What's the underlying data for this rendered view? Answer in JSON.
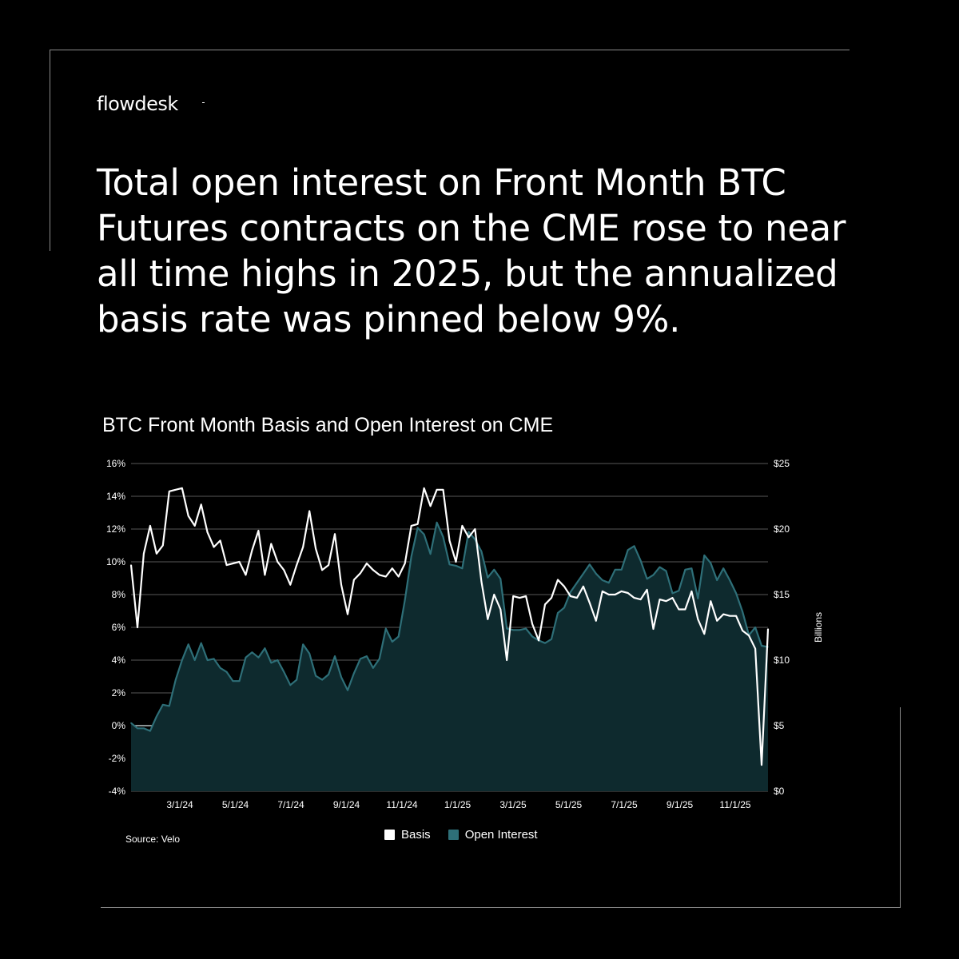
{
  "brand": {
    "logo_text": "flowdesk"
  },
  "headline": "Total open interest on Front Month BTC Futures contracts on the CME rose to near all time highs in 2025, but the annualized basis rate was pinned below 9%.",
  "chart_data": {
    "type": "line",
    "title": "BTC Front Month Basis and Open Interest on CME",
    "source": "Source: Velo",
    "x_tick_labels": [
      "3/1/24",
      "5/1/24",
      "7/1/24",
      "9/1/24",
      "11/1/24",
      "1/1/25",
      "3/1/25",
      "5/1/25",
      "7/1/25",
      "9/1/25",
      "11/1/25"
    ],
    "y_left": {
      "ticks": [
        "16%",
        "14%",
        "12%",
        "10%",
        "8%",
        "6%",
        "4%",
        "2%",
        "0%",
        "-2%",
        "-4%"
      ],
      "ylim": [
        -4,
        16
      ]
    },
    "y_right": {
      "ticks": [
        "$25",
        "$20",
        "$15",
        "$10",
        "$5",
        "$0"
      ],
      "ylim": [
        0,
        25
      ],
      "label": "Billions"
    },
    "legend_position": "bottom",
    "colors": {
      "basis": "#ffffff",
      "open_interest_line": "#2e6f78",
      "open_interest_fill": "#0e2a2e",
      "grid": "#777777",
      "zero_line": "#b8c4c6"
    },
    "series": [
      {
        "name": "Basis",
        "axis": "left",
        "values": [
          9.8,
          6.0,
          10.5,
          12.2,
          10.5,
          11.0,
          14.3,
          14.4,
          14.5,
          12.8,
          12.2,
          13.5,
          11.8,
          10.9,
          11.3,
          9.8,
          9.9,
          10.0,
          9.2,
          10.7,
          11.9,
          9.2,
          11.1,
          10.0,
          9.5,
          8.6,
          9.8,
          10.9,
          13.1,
          10.8,
          9.5,
          9.8,
          11.7,
          8.6,
          6.8,
          8.9,
          9.3,
          9.9,
          9.5,
          9.2,
          9.1,
          9.6,
          9.1,
          9.9,
          12.2,
          12.3,
          14.5,
          13.4,
          14.4,
          14.4,
          11.3,
          10.0,
          12.2,
          11.5,
          12.0,
          8.8,
          6.5,
          8.0,
          7.1,
          4.0,
          7.9,
          7.8,
          7.9,
          6.2,
          5.2,
          7.4,
          7.8,
          8.9,
          8.5,
          7.9,
          7.8,
          8.5,
          7.5,
          6.4,
          8.2,
          8.0,
          8.0,
          8.2,
          8.1,
          7.8,
          7.7,
          8.3,
          5.9,
          7.7,
          7.6,
          7.8,
          7.1,
          7.1,
          8.2,
          6.5,
          5.6,
          7.6,
          6.4,
          6.8,
          6.7,
          6.7,
          5.8,
          5.5,
          4.7,
          -2.4,
          5.9
        ]
      },
      {
        "name": "Open Interest",
        "axis": "right",
        "values": [
          5.2,
          4.8,
          4.8,
          4.6,
          5.7,
          6.6,
          6.5,
          8.5,
          10.0,
          11.2,
          10.0,
          11.3,
          10.0,
          10.1,
          9.4,
          9.1,
          8.4,
          8.4,
          10.2,
          10.6,
          10.2,
          10.9,
          9.8,
          10.0,
          9.1,
          8.1,
          8.5,
          11.2,
          10.5,
          8.8,
          8.5,
          8.9,
          10.3,
          8.7,
          7.7,
          9.0,
          10.1,
          10.3,
          9.4,
          10.1,
          12.4,
          11.4,
          11.8,
          14.6,
          17.9,
          20.1,
          19.6,
          18.1,
          20.5,
          19.4,
          17.3,
          17.2,
          17.0,
          19.8,
          19.2,
          18.3,
          16.3,
          16.9,
          16.2,
          12.4,
          12.3,
          12.3,
          12.4,
          11.8,
          11.5,
          11.3,
          11.6,
          13.6,
          14.0,
          15.2,
          15.9,
          16.6,
          17.3,
          16.6,
          16.1,
          15.9,
          16.9,
          16.9,
          18.4,
          18.7,
          17.6,
          16.2,
          16.5,
          17.1,
          16.8,
          15.1,
          15.3,
          16.9,
          17.0,
          14.7,
          18.0,
          17.4,
          16.1,
          17.0,
          16.1,
          15.1,
          13.7,
          11.9,
          12.5,
          11.1,
          11.0
        ]
      }
    ]
  }
}
